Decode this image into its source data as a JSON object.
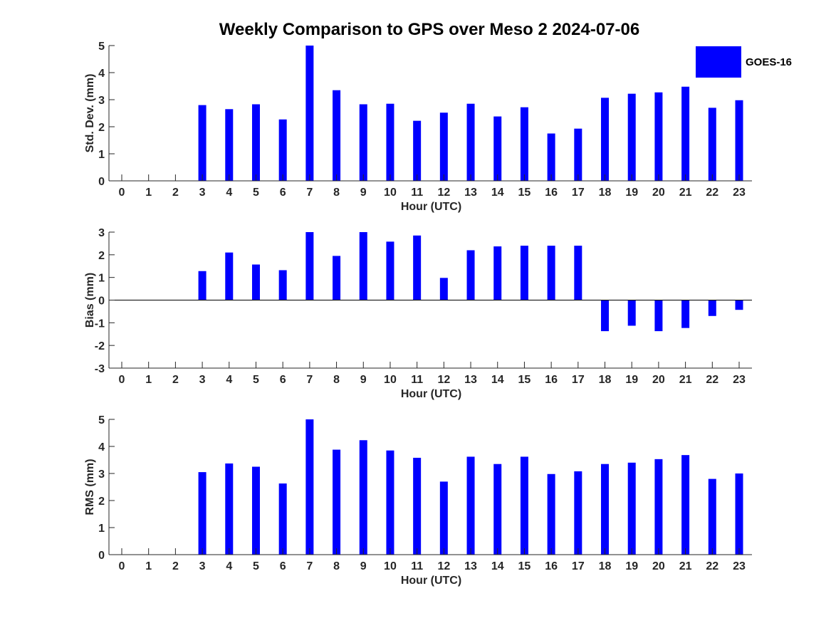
{
  "title": "Weekly Comparison to GPS over Meso 2 2024-07-06",
  "legend": {
    "label": "GOES-16",
    "color": "#0000ff"
  },
  "chart_data": [
    {
      "type": "bar",
      "categories": [
        "0",
        "1",
        "2",
        "3",
        "4",
        "5",
        "6",
        "7",
        "8",
        "9",
        "10",
        "11",
        "12",
        "13",
        "14",
        "15",
        "16",
        "17",
        "18",
        "19",
        "20",
        "21",
        "22",
        "23"
      ],
      "series": [
        {
          "name": "GOES-16",
          "values": [
            null,
            null,
            null,
            2.8,
            2.65,
            2.83,
            2.27,
            5.0,
            3.35,
            2.83,
            2.85,
            2.22,
            2.52,
            2.85,
            2.38,
            2.72,
            1.75,
            1.93,
            3.07,
            3.22,
            3.27,
            3.48,
            2.7,
            2.98
          ]
        }
      ],
      "xlabel": "Hour (UTC)",
      "ylabel": "Std. Dev. (mm)",
      "ylim": [
        0,
        5
      ],
      "yticks": [
        0,
        1,
        2,
        3,
        4,
        5
      ],
      "grid": false
    },
    {
      "type": "bar",
      "categories": [
        "0",
        "1",
        "2",
        "3",
        "4",
        "5",
        "6",
        "7",
        "8",
        "9",
        "10",
        "11",
        "12",
        "13",
        "14",
        "15",
        "16",
        "17",
        "18",
        "19",
        "20",
        "21",
        "22",
        "23"
      ],
      "series": [
        {
          "name": "GOES-16",
          "values": [
            null,
            null,
            null,
            1.28,
            2.1,
            1.57,
            1.32,
            3.0,
            1.95,
            3.0,
            2.58,
            2.85,
            0.98,
            2.2,
            2.37,
            2.4,
            2.4,
            2.4,
            -1.37,
            -1.13,
            -1.37,
            -1.23,
            -0.7,
            -0.43
          ]
        }
      ],
      "xlabel": "Hour (UTC)",
      "ylabel": "Bias (mm)",
      "ylim": [
        -3,
        3
      ],
      "yticks": [
        -3,
        -2,
        -1,
        0,
        1,
        2,
        3
      ],
      "grid": false
    },
    {
      "type": "bar",
      "categories": [
        "0",
        "1",
        "2",
        "3",
        "4",
        "5",
        "6",
        "7",
        "8",
        "9",
        "10",
        "11",
        "12",
        "13",
        "14",
        "15",
        "16",
        "17",
        "18",
        "19",
        "20",
        "21",
        "22",
        "23"
      ],
      "series": [
        {
          "name": "GOES-16",
          "values": [
            null,
            null,
            null,
            3.05,
            3.37,
            3.25,
            2.63,
            5.0,
            3.88,
            4.23,
            3.85,
            3.58,
            2.7,
            3.62,
            3.35,
            3.62,
            2.98,
            3.08,
            3.35,
            3.4,
            3.53,
            3.68,
            2.8,
            3.0
          ]
        }
      ],
      "xlabel": "Hour (UTC)",
      "ylabel": "RMS (mm)",
      "ylim": [
        0,
        5
      ],
      "yticks": [
        0,
        1,
        2,
        3,
        4,
        5
      ],
      "grid": false
    }
  ]
}
